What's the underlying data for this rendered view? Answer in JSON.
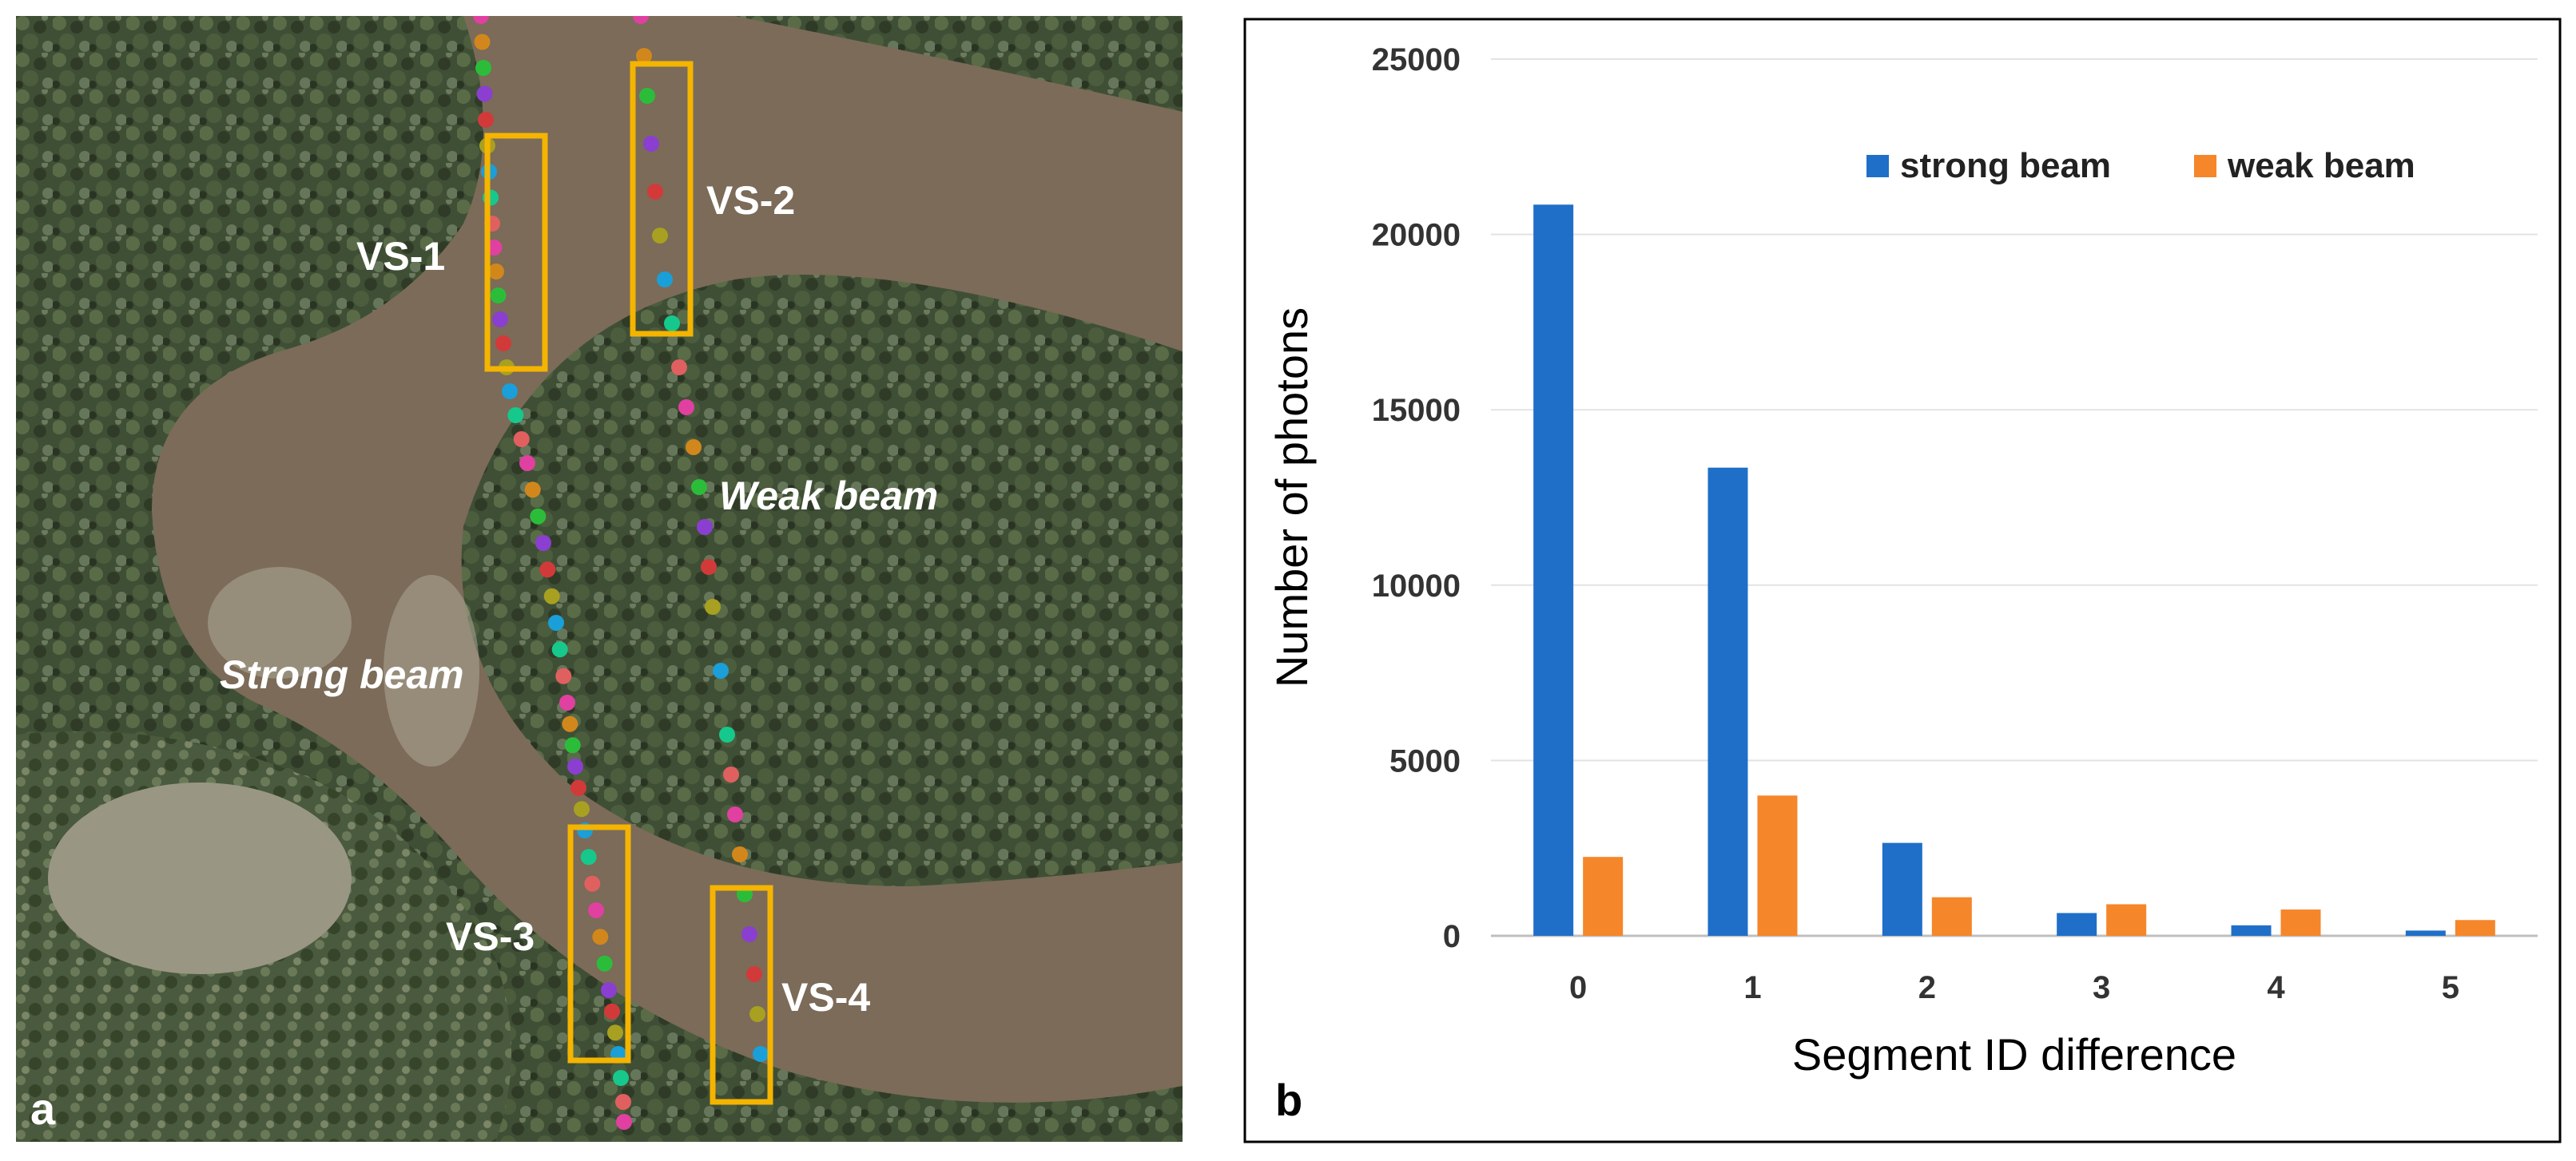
{
  "panel_a": {
    "label": "a",
    "box_labels": [
      "VS-1",
      "VS-2",
      "VS-3",
      "VS-4"
    ],
    "beam_labels": {
      "strong": "Strong beam",
      "weak": "Weak beam"
    }
  },
  "panel_b": {
    "label": "b"
  },
  "chart_data": {
    "type": "bar",
    "title": "",
    "xlabel": "Segment ID difference",
    "ylabel": "Number of photons",
    "categories": [
      "0",
      "1",
      "2",
      "3",
      "4",
      "5"
    ],
    "series": [
      {
        "name": "strong beam",
        "color": "#1f6fc9",
        "values": [
          20850,
          13350,
          2650,
          650,
          300,
          150
        ]
      },
      {
        "name": "weak beam",
        "color": "#f5862a",
        "values": [
          2250,
          4000,
          1100,
          900,
          750,
          450
        ]
      }
    ],
    "ylim": [
      0,
      25000
    ],
    "yticks": [
      0,
      5000,
      10000,
      15000,
      20000,
      25000
    ],
    "grid": true,
    "legend": "top-right"
  }
}
